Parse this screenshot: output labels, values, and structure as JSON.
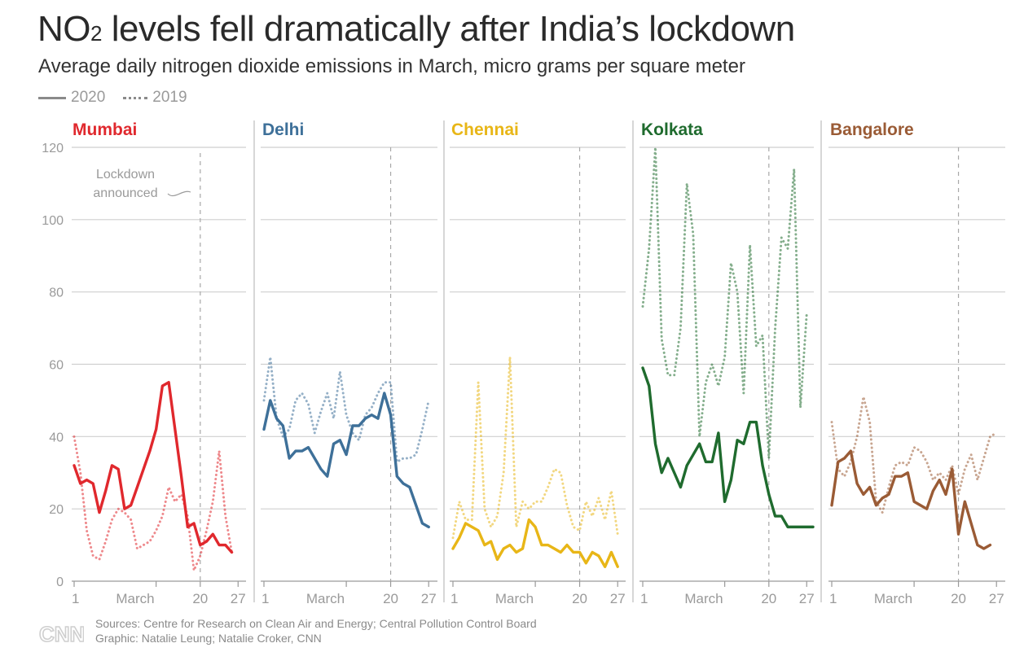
{
  "header": {
    "title_pre": "NO",
    "title_sub": "2",
    "title_post": " levels fell dramatically after India’s lockdown",
    "subtitle": "Average daily nitrogen dioxide emissions in March, micro grams per square meter"
  },
  "legend": {
    "solid_label": "2020",
    "dotted_label": "2019"
  },
  "annotation": {
    "line1": "Lockdown",
    "line2": "announced"
  },
  "footer": {
    "logo_text": "CNN",
    "sources": "Sources: Centre for Research on Clean Air and Energy; Central Pollution Control Board",
    "graphic": "Graphic: Natalie Leung; Natalie Croker, CNN"
  },
  "chart_data": {
    "type": "line",
    "title": "NO2 levels fell dramatically after India’s lockdown",
    "subtitle": "Average daily nitrogen dioxide emissions in March, micro grams per square meter",
    "ylim": [
      0,
      120
    ],
    "yticks": [
      0,
      20,
      40,
      60,
      80,
      100,
      120
    ],
    "xlim": [
      1,
      28
    ],
    "xtick_labels": [
      {
        "x": 1,
        "label": "1"
      },
      {
        "x": 14,
        "label": "March"
      },
      {
        "x": 21,
        "label": "20"
      },
      {
        "x": 27,
        "label": "27"
      }
    ],
    "lockdown_day": 21,
    "grid": true,
    "legend_position": "top-left",
    "panels": [
      {
        "city": "Mumbai",
        "color": "#e0282d",
        "series": [
          {
            "name": "2020",
            "style": "solid",
            "values": [
              32,
              27,
              28,
              27,
              19,
              25,
              32,
              31,
              20,
              21,
              26,
              31,
              36,
              42,
              54,
              55,
              42,
              29,
              15,
              16,
              10,
              11,
              13,
              10,
              10,
              8
            ]
          },
          {
            "name": "2019",
            "style": "dotted",
            "values": [
              40,
              30,
              14,
              7,
              6,
              11,
              17,
              20,
              19,
              17,
              9,
              10,
              11,
              14,
              18,
              26,
              22,
              24,
              18,
              3,
              7,
              14,
              22,
              36,
              18,
              8
            ]
          }
        ]
      },
      {
        "city": "Delhi",
        "color": "#3e7099",
        "series": [
          {
            "name": "2020",
            "style": "solid",
            "values": [
              42,
              50,
              45,
              43,
              34,
              36,
              36,
              37,
              34,
              31,
              29,
              38,
              39,
              35,
              43,
              43,
              45,
              46,
              45,
              52,
              46,
              29,
              27,
              26,
              21,
              16,
              15
            ]
          },
          {
            "name": "2019",
            "style": "dotted",
            "values": [
              50,
              62,
              45,
              40,
              42,
              50,
              52,
              49,
              41,
              47,
              52,
              45,
              58,
              46,
              41,
              39,
              46,
              48,
              52,
              55,
              55,
              33,
              34,
              34,
              35,
              42,
              50
            ]
          }
        ]
      },
      {
        "city": "Chennai",
        "color": "#e8b617",
        "series": [
          {
            "name": "2020",
            "style": "solid",
            "values": [
              9,
              12,
              16,
              15,
              14,
              10,
              11,
              6,
              9,
              10,
              8,
              9,
              17,
              15,
              10,
              10,
              9,
              8,
              10,
              8,
              8,
              5,
              8,
              7,
              4,
              8,
              4
            ]
          },
          {
            "name": "2019",
            "style": "dotted",
            "values": [
              12,
              22,
              17,
              17,
              55,
              20,
              15,
              18,
              30,
              62,
              15,
              22,
              20,
              22,
              22,
              26,
              31,
              30,
              21,
              15,
              14,
              22,
              18,
              23,
              17,
              25,
              13
            ]
          }
        ]
      },
      {
        "city": "Kolkata",
        "color": "#1f6b2e",
        "series": [
          {
            "name": "2020",
            "style": "solid",
            "values": [
              59,
              54,
              38,
              30,
              34,
              30,
              26,
              32,
              35,
              38,
              33,
              33,
              41,
              22,
              28,
              39,
              38,
              44,
              44,
              32,
              24,
              18,
              18,
              15,
              15,
              15,
              15,
              15
            ]
          },
          {
            "name": "2019",
            "style": "dotted",
            "values": [
              76,
              92,
              120,
              67,
              57,
              57,
              70,
              110,
              96,
              40,
              55,
              60,
              54,
              62,
              88,
              80,
              52,
              93,
              65,
              68,
              34,
              70,
              95,
              92,
              114,
              48,
              74
            ]
          }
        ]
      },
      {
        "city": "Bangalore",
        "color": "#9a5b35",
        "series": [
          {
            "name": "2020",
            "style": "solid",
            "values": [
              21,
              33,
              34,
              36,
              27,
              24,
              26,
              21,
              23,
              24,
              29,
              29,
              30,
              22,
              21,
              20,
              25,
              28,
              24,
              31,
              13,
              22,
              16,
              10,
              9,
              10
            ]
          },
          {
            "name": "2019",
            "style": "dotted",
            "values": [
              44,
              31,
              29,
              33,
              40,
              51,
              44,
              22,
              19,
              26,
              32,
              33,
              32,
              37,
              36,
              33,
              28,
              30,
              28,
              32,
              24,
              31,
              35,
              28,
              34,
              40,
              41
            ]
          }
        ]
      }
    ]
  }
}
